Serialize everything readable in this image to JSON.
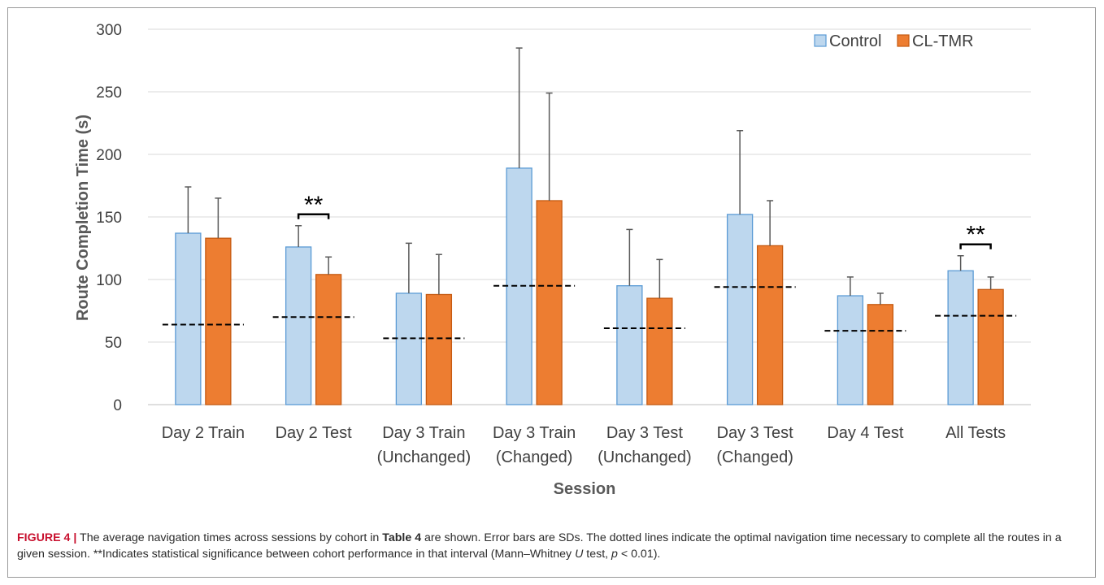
{
  "chart_data": {
    "type": "bar",
    "xlabel": "Session",
    "ylabel": "Route Completion Time (s)",
    "ylim": [
      0,
      300
    ],
    "yticks": [
      "0",
      "50",
      "100",
      "150",
      "200",
      "250",
      "300"
    ],
    "ytick_values": [
      0,
      50,
      100,
      150,
      200,
      250,
      300
    ],
    "grid": "horizontal",
    "legend_position": "top-right",
    "categories": [
      [
        "Day 2 Train"
      ],
      [
        "Day 2 Test"
      ],
      [
        "Day 3 Train",
        "(Unchanged)"
      ],
      [
        "Day 3 Train",
        "(Changed)"
      ],
      [
        "Day 3 Test",
        "(Unchanged)"
      ],
      [
        "Day 3 Test",
        "(Changed)"
      ],
      [
        "Day 4 Test"
      ],
      [
        "All Tests"
      ]
    ],
    "series": [
      {
        "name": "Control",
        "color": "#bdd7ee",
        "edge": "#5b9bd5",
        "values": [
          137,
          126,
          89,
          189,
          95,
          152,
          87,
          107
        ],
        "error_top": [
          174,
          143,
          129,
          285,
          140,
          219,
          102,
          119
        ]
      },
      {
        "name": "CL-TMR",
        "color": "#ed7d31",
        "edge": "#c55a11",
        "values": [
          133,
          104,
          88,
          163,
          85,
          127,
          80,
          92
        ],
        "error_top": [
          165,
          118,
          120,
          249,
          116,
          163,
          89,
          102
        ]
      }
    ],
    "optimal_time": [
      64,
      70,
      53,
      95,
      61,
      94,
      59,
      71
    ],
    "significance": [
      {
        "category_index": 1,
        "label": "**"
      },
      {
        "category_index": 7,
        "label": "**"
      }
    ]
  },
  "caption": {
    "figure_label": "FIGURE 4 |",
    "text_1": " The average navigation times across sessions by cohort in ",
    "table_ref": "Table 4",
    "text_2": " are shown. Error bars are SDs. The dotted lines indicate the optimal navigation time necessary to complete all the routes in a given session. **Indicates statistical significance between cohort performance in that interval (Mann–Whitney ",
    "u_symbol": "U",
    "text_3": " test, ",
    "p_symbol": "p",
    "text_4": " < 0.01)."
  }
}
